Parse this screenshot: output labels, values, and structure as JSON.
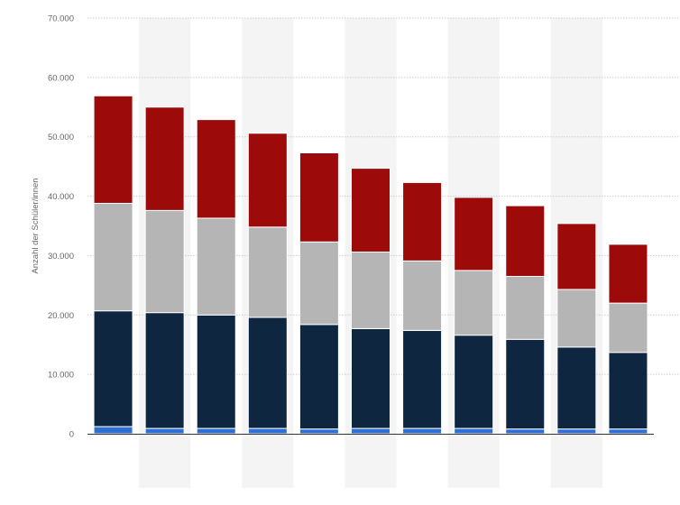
{
  "chart_data": {
    "type": "bar",
    "stacked": true,
    "title": "",
    "xlabel": "",
    "ylabel": "Anzahl der Schüler/innen",
    "ylim": [
      0,
      70000
    ],
    "yticks": [
      0,
      10000,
      20000,
      30000,
      40000,
      50000,
      60000,
      70000
    ],
    "ytick_labels": [
      "0",
      "10.000",
      "20.000",
      "30.000",
      "40.000",
      "50.000",
      "60.000",
      "70.000"
    ],
    "grid": true,
    "legend": "none",
    "categories": [
      "",
      "",
      "",
      "",
      "",
      "",
      "",
      "",
      "",
      "",
      ""
    ],
    "series": [
      {
        "color": "#2d6fd2",
        "values": [
          1200,
          900,
          900,
          900,
          800,
          900,
          900,
          900,
          800,
          800,
          800
        ]
      },
      {
        "color": "#0f2640",
        "values": [
          19500,
          19500,
          19100,
          18700,
          17600,
          16800,
          16500,
          15700,
          15100,
          13800,
          12900
        ]
      },
      {
        "color": "#b5b5b5",
        "values": [
          18100,
          17200,
          16300,
          15200,
          13900,
          12900,
          11700,
          10900,
          10600,
          9700,
          8300
        ]
      },
      {
        "color": "#9c0a0a",
        "values": [
          18100,
          17400,
          16600,
          15800,
          15000,
          14100,
          13200,
          12300,
          11900,
          11100,
          9900
        ]
      }
    ],
    "colors": {
      "plot_band": "#f4f4f4",
      "gridline": "#cccccc",
      "axis_line": "#333333",
      "tick_text": "#666666"
    }
  }
}
